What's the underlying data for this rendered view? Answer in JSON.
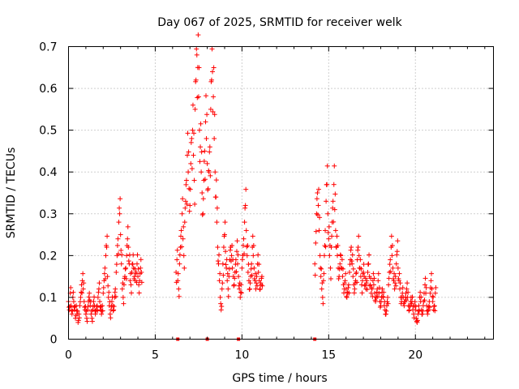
{
  "chart_data": {
    "type": "scatter",
    "title": "Day 067 of 2025, SRMTID for receiver welk",
    "xlabel": "GPS time / hours",
    "ylabel": "SRMTID / TECUs",
    "xlim": [
      0,
      24.5
    ],
    "ylim": [
      0,
      0.7
    ],
    "x_ticks": [
      0,
      5,
      10,
      15,
      20
    ],
    "x_tick_labels": [
      "0",
      "5",
      "10",
      "15",
      "20"
    ],
    "y_ticks": [
      0,
      0.1,
      0.2,
      0.3,
      0.4,
      0.5,
      0.6,
      0.7
    ],
    "y_tick_labels": [
      "0",
      "0.1",
      "0.2",
      "0.3",
      "0.4",
      "0.5",
      "0.6",
      "0.7"
    ],
    "grid": true,
    "marker": "+",
    "series_color": "#ff0000",
    "time_step_hours": 0.05,
    "segments": [
      {
        "start": 0.0,
        "values": [
          0.09,
          0.07,
          0.11,
          0.08,
          0.06,
          0.1,
          0.09,
          0.07,
          0.05,
          0.08,
          0.06,
          0.04,
          0.06,
          0.08,
          0.1,
          0.13,
          0.14,
          0.12,
          0.09,
          0.07,
          0.06,
          0.05,
          0.07,
          0.09,
          0.11,
          0.08,
          0.06,
          0.05,
          0.07,
          0.09,
          0.08,
          0.06,
          0.07,
          0.08,
          0.1,
          0.12,
          0.09,
          0.07,
          0.06,
          0.08,
          0.11,
          0.14,
          0.17,
          0.2,
          0.22,
          0.15,
          0.1,
          0.08,
          0.06,
          0.07,
          0.09,
          0.08,
          0.07,
          0.1,
          0.12,
          0.16,
          0.2,
          0.24,
          0.28,
          0.3,
          0.25,
          0.18,
          0.12,
          0.1,
          0.13,
          0.15,
          0.17,
          0.2,
          0.24,
          0.22,
          0.18,
          0.14,
          0.13,
          0.16,
          0.18,
          0.17,
          0.15,
          0.14,
          0.16,
          0.18,
          0.15,
          0.13,
          0.14,
          0.17,
          0.16
        ]
      },
      {
        "start": 6.2,
        "values": [
          0.16,
          0.19,
          0.14,
          0.12,
          0.18,
          0.22,
          0.26,
          0.3,
          0.24,
          0.2,
          0.28,
          0.33,
          0.38,
          0.44,
          0.4,
          0.36,
          0.32,
          0.42,
          0.48,
          0.5,
          0.44,
          0.38,
          0.55,
          0.62,
          0.68,
          0.65,
          0.58,
          0.5,
          0.46,
          0.4,
          0.35,
          0.3,
          0.38,
          0.45,
          0.52,
          0.48,
          0.42,
          0.36,
          0.4,
          0.46,
          0.55,
          0.62,
          0.64,
          0.58,
          0.48,
          0.4,
          0.34,
          0.28,
          0.22,
          0.18,
          0.14,
          0.1,
          0.07,
          0.12,
          0.18,
          0.22,
          0.25,
          0.21,
          0.17,
          0.14,
          0.12,
          0.15,
          0.19,
          0.22,
          0.2,
          0.17,
          0.15,
          0.13,
          0.16,
          0.19,
          0.21,
          0.18,
          0.15,
          0.12,
          0.1,
          0.13,
          0.17,
          0.2,
          0.24,
          0.28,
          0.32,
          0.26,
          0.2,
          0.16,
          0.14,
          0.12,
          0.15,
          0.18,
          0.22,
          0.2,
          0.17,
          0.14,
          0.12,
          0.15,
          0.18,
          0.16,
          0.14,
          0.12,
          0.13,
          0.15
        ]
      },
      {
        "start": 14.2,
        "values": [
          0.18,
          0.23,
          0.3,
          0.35,
          0.32,
          0.26,
          0.2,
          0.15,
          0.12,
          0.1,
          0.14,
          0.2,
          0.26,
          0.33,
          0.37,
          0.3,
          0.24,
          0.2,
          0.17,
          0.22,
          0.28,
          0.33,
          0.37,
          0.31,
          0.26,
          0.22,
          0.2,
          0.17,
          0.15,
          0.18,
          0.2,
          0.17,
          0.15,
          0.13,
          0.12,
          0.14,
          0.12,
          0.1,
          0.11,
          0.13,
          0.16,
          0.19,
          0.22,
          0.18,
          0.15,
          0.13,
          0.12,
          0.14,
          0.16,
          0.19,
          0.22,
          0.2,
          0.17,
          0.15,
          0.13,
          0.14,
          0.16,
          0.15,
          0.13,
          0.12,
          0.14,
          0.16,
          0.18,
          0.15,
          0.13,
          0.11,
          0.12,
          0.14,
          0.13,
          0.11,
          0.09,
          0.1,
          0.12,
          0.14,
          0.11,
          0.09,
          0.08,
          0.1,
          0.12,
          0.1,
          0.08,
          0.07,
          0.06,
          0.08,
          0.1,
          0.13,
          0.16,
          0.19,
          0.22,
          0.2,
          0.17,
          0.14,
          0.12,
          0.15,
          0.18,
          0.21,
          0.17,
          0.14,
          0.12,
          0.1,
          0.09,
          0.11,
          0.1,
          0.08,
          0.09,
          0.11,
          0.12,
          0.1,
          0.08,
          0.07,
          0.08,
          0.1,
          0.09,
          0.07,
          0.06,
          0.08,
          0.07,
          0.05,
          0.04,
          0.06,
          0.08,
          0.1,
          0.09,
          0.07,
          0.06,
          0.08,
          0.11,
          0.13,
          0.11,
          0.08,
          0.06,
          0.07,
          0.09,
          0.11,
          0.14,
          0.12,
          0.09,
          0.07,
          0.08,
          0.11
        ]
      }
    ],
    "zero_markers": [
      6.3,
      8.0,
      9.8,
      14.2
    ]
  }
}
